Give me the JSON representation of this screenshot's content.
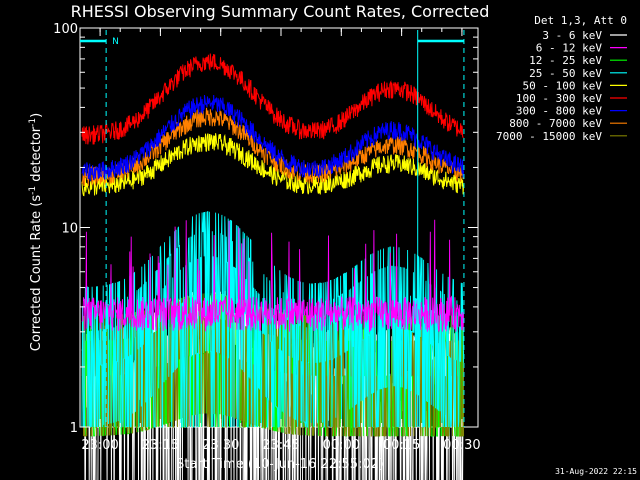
{
  "chart_data": {
    "type": "line",
    "title": "RHESSI Observing Summary Count Rates, Corrected",
    "ylabel": "Corrected Count Rate (s",
    "ylabel_sup": "-1",
    "ylabel_tail": " detector",
    "ylabel_sup2": "-1",
    "ylabel_end": ")",
    "xlabel": "Start Time (10-Jun-16 22:55:02)",
    "y_scale": "log",
    "ylim": [
      1,
      100
    ],
    "y_ticks": [
      1,
      10,
      100
    ],
    "y_tick_labels": [
      "1",
      "10",
      "100"
    ],
    "x_ticks_minutes": [
      5,
      20,
      35,
      50,
      65,
      80,
      95
    ],
    "x_tick_labels": [
      "23:00",
      "23:15",
      "23:30",
      "23:45",
      "00:00",
      "00:15",
      "00:30"
    ],
    "x_range_minutes": [
      0,
      99
    ],
    "legend_header": "Det 1,3, Att 0",
    "night_marker_label": "N",
    "night_intervals": [
      [
        0,
        6.5
      ],
      [
        84,
        95.5
      ]
    ],
    "grid": false,
    "legend_position": "top-right",
    "footer_date": "31-Aug-2022 22:15",
    "series": [
      {
        "name": "3 - 6 keV",
        "color": "#ffffff",
        "kind": "noise_low",
        "level": 1.4
      },
      {
        "name": "6 - 12 keV",
        "color": "#ff00ff",
        "kind": "spiky",
        "level": 3.2
      },
      {
        "name": "12 - 25 keV",
        "color": "#00ff00",
        "kind": "band",
        "level": 3.0
      },
      {
        "name": "25 - 50 keV",
        "color": "#00ffff",
        "kind": "band",
        "level": 4.5
      },
      {
        "name": "50 - 100 keV",
        "color": "#ffff00",
        "kind": "curve",
        "base": 16,
        "peak1": 27,
        "peak2": 21
      },
      {
        "name": "100 - 300 keV",
        "color": "#ff0000",
        "kind": "curve",
        "base": 29,
        "peak1": 68,
        "peak2": 50
      },
      {
        "name": "300 - 800 keV",
        "color": "#0000ff",
        "kind": "curve",
        "base": 19,
        "peak1": 42,
        "peak2": 31
      },
      {
        "name": "800 - 7000 keV",
        "color": "#ff8000",
        "kind": "curve",
        "base": 18,
        "peak1": 36,
        "peak2": 26
      },
      {
        "name": "7000 - 15000 keV",
        "color": "#808000",
        "kind": "band",
        "level": 3.0
      }
    ]
  }
}
